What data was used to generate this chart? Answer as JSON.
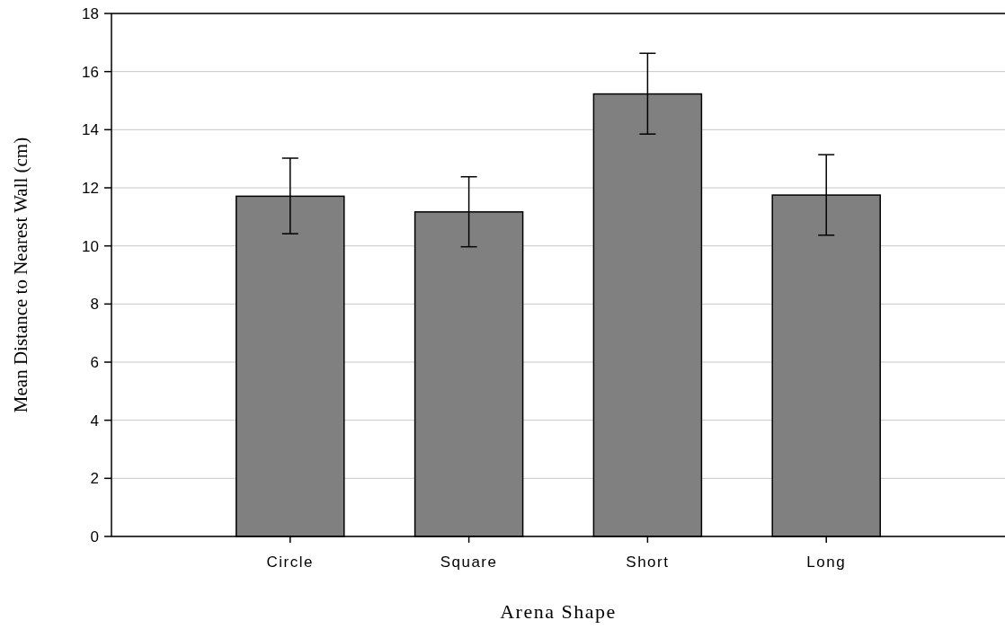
{
  "chart_data": {
    "type": "bar",
    "xlabel": "Arena Shape",
    "ylabel": "Mean Distance to Nearest Wall (cm)",
    "categories": [
      "Circle",
      "Square",
      "Short",
      "Long"
    ],
    "values": [
      11.71,
      11.17,
      15.23,
      11.75
    ],
    "errors": [
      [
        10.42,
        13.02
      ],
      [
        9.97,
        12.38
      ],
      [
        13.85,
        16.63
      ],
      [
        10.37,
        13.14
      ]
    ],
    "color": "#808080",
    "ylim": [
      0,
      18
    ],
    "yticks": [
      0,
      2,
      4,
      6,
      8,
      10,
      12,
      14,
      16,
      18
    ],
    "grid": "y"
  }
}
